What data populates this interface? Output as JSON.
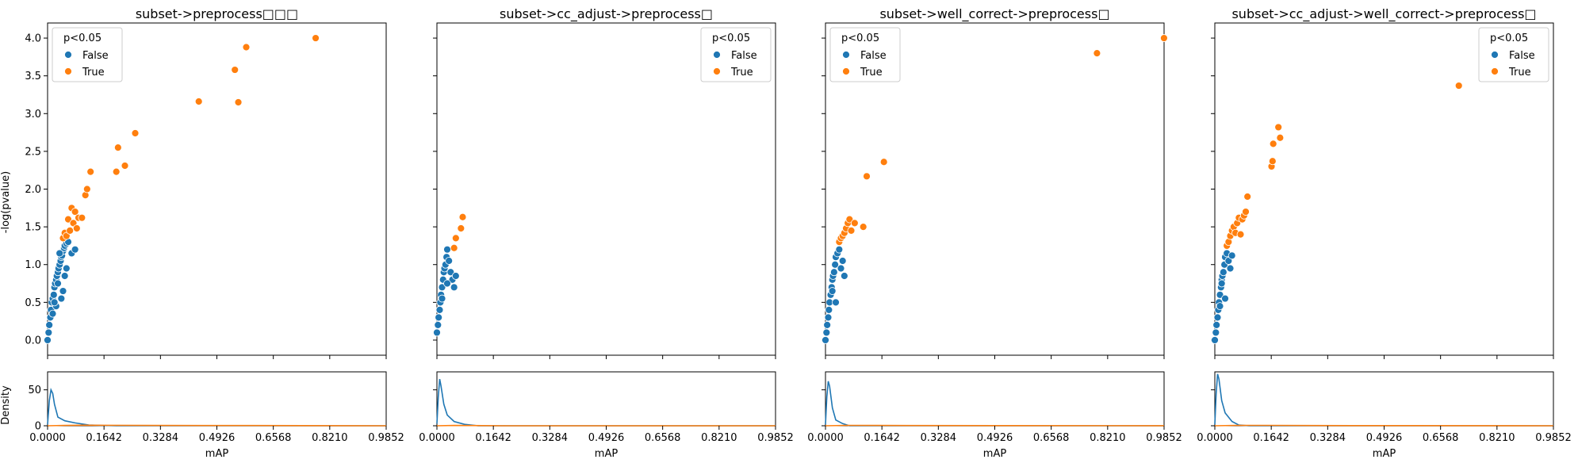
{
  "colors": {
    "false": "#1f77b4",
    "true": "#ff7f0e"
  },
  "chart_data": [
    {
      "type": "scatter",
      "title": "subset->preprocess□□□",
      "ylabel": "-log(pvalue)",
      "xlabel": "mAP",
      "xlim": [
        0,
        0.9852
      ],
      "ylim": [
        -0.2,
        4.2
      ],
      "xticks": [
        "0.0000",
        "0.1642",
        "0.3284",
        "0.4926",
        "0.6568",
        "0.8210",
        "0.9852"
      ],
      "yticks": [
        "0.0",
        "0.5",
        "1.0",
        "1.5",
        "2.0",
        "2.5",
        "3.0",
        "3.5",
        "4.0"
      ],
      "legend": {
        "title": "p<0.05",
        "entries": [
          "False",
          "True"
        ],
        "position": "top-left"
      },
      "series": [
        {
          "name": "False",
          "points": [
            [
              0.0,
              0.0
            ],
            [
              0.003,
              0.1
            ],
            [
              0.005,
              0.2
            ],
            [
              0.008,
              0.3
            ],
            [
              0.01,
              0.4
            ],
            [
              0.012,
              0.5
            ],
            [
              0.015,
              0.55
            ],
            [
              0.018,
              0.6
            ],
            [
              0.02,
              0.7
            ],
            [
              0.022,
              0.75
            ],
            [
              0.025,
              0.8
            ],
            [
              0.027,
              0.85
            ],
            [
              0.03,
              0.9
            ],
            [
              0.032,
              0.95
            ],
            [
              0.035,
              1.0
            ],
            [
              0.038,
              1.05
            ],
            [
              0.04,
              1.1
            ],
            [
              0.042,
              1.12
            ],
            [
              0.045,
              1.18
            ],
            [
              0.048,
              1.22
            ],
            [
              0.05,
              1.25
            ],
            [
              0.055,
              1.28
            ],
            [
              0.06,
              1.3
            ],
            [
              0.035,
              1.15
            ],
            [
              0.03,
              0.75
            ],
            [
              0.04,
              0.55
            ],
            [
              0.055,
              0.95
            ],
            [
              0.07,
              1.15
            ],
            [
              0.08,
              1.2
            ],
            [
              0.05,
              0.85
            ],
            [
              0.045,
              0.65
            ],
            [
              0.025,
              0.45
            ],
            [
              0.02,
              0.5
            ],
            [
              0.015,
              0.35
            ]
          ]
        },
        {
          "name": "True",
          "points": [
            [
              0.045,
              1.35
            ],
            [
              0.05,
              1.42
            ],
            [
              0.055,
              1.38
            ],
            [
              0.06,
              1.6
            ],
            [
              0.065,
              1.45
            ],
            [
              0.07,
              1.75
            ],
            [
              0.075,
              1.55
            ],
            [
              0.08,
              1.7
            ],
            [
              0.085,
              1.48
            ],
            [
              0.09,
              1.62
            ],
            [
              0.1,
              1.62
            ],
            [
              0.11,
              1.92
            ],
            [
              0.115,
              2.0
            ],
            [
              0.125,
              2.23
            ],
            [
              0.2,
              2.23
            ],
            [
              0.205,
              2.55
            ],
            [
              0.225,
              2.31
            ],
            [
              0.255,
              2.74
            ],
            [
              0.44,
              3.16
            ],
            [
              0.545,
              3.58
            ],
            [
              0.555,
              3.15
            ],
            [
              0.578,
              3.88
            ],
            [
              0.78,
              4.0
            ]
          ]
        }
      ]
    },
    {
      "type": "scatter",
      "title": "subset->cc_adjust->preprocess□",
      "xlabel": "mAP",
      "xlim": [
        0,
        0.9852
      ],
      "ylim": [
        -0.2,
        4.2
      ],
      "xticks": [
        "0.0000",
        "0.1642",
        "0.3284",
        "0.4926",
        "0.6568",
        "0.8210",
        "0.9852"
      ],
      "legend": {
        "title": "p<0.05",
        "entries": [
          "False",
          "True"
        ],
        "position": "top-right"
      },
      "series": [
        {
          "name": "False",
          "points": [
            [
              0.0,
              0.1
            ],
            [
              0.003,
              0.2
            ],
            [
              0.005,
              0.3
            ],
            [
              0.008,
              0.4
            ],
            [
              0.01,
              0.5
            ],
            [
              0.012,
              0.6
            ],
            [
              0.015,
              0.7
            ],
            [
              0.018,
              0.8
            ],
            [
              0.02,
              0.9
            ],
            [
              0.022,
              0.95
            ],
            [
              0.025,
              1.0
            ],
            [
              0.028,
              1.1
            ],
            [
              0.03,
              1.2
            ],
            [
              0.035,
              1.05
            ],
            [
              0.04,
              0.9
            ],
            [
              0.045,
              0.8
            ],
            [
              0.05,
              0.7
            ],
            [
              0.055,
              0.85
            ],
            [
              0.03,
              0.75
            ],
            [
              0.015,
              0.55
            ]
          ]
        },
        {
          "name": "True",
          "points": [
            [
              0.05,
              1.22
            ],
            [
              0.055,
              1.35
            ],
            [
              0.07,
              1.48
            ],
            [
              0.075,
              1.63
            ]
          ]
        }
      ]
    },
    {
      "type": "scatter",
      "title": "subset->well_correct->preprocess□",
      "xlabel": "mAP",
      "xlim": [
        0,
        0.9852
      ],
      "ylim": [
        -0.2,
        4.2
      ],
      "xticks": [
        "0.0000",
        "0.1642",
        "0.3284",
        "0.4926",
        "0.6568",
        "0.8210",
        "0.9852"
      ],
      "legend": {
        "title": "p<0.05",
        "entries": [
          "False",
          "True"
        ],
        "position": "top-left"
      },
      "series": [
        {
          "name": "False",
          "points": [
            [
              0.0,
              0.0
            ],
            [
              0.003,
              0.1
            ],
            [
              0.005,
              0.2
            ],
            [
              0.008,
              0.3
            ],
            [
              0.01,
              0.4
            ],
            [
              0.012,
              0.5
            ],
            [
              0.015,
              0.6
            ],
            [
              0.018,
              0.7
            ],
            [
              0.02,
              0.8
            ],
            [
              0.022,
              0.85
            ],
            [
              0.025,
              0.9
            ],
            [
              0.028,
              1.0
            ],
            [
              0.03,
              1.1
            ],
            [
              0.035,
              1.15
            ],
            [
              0.04,
              1.2
            ],
            [
              0.045,
              0.95
            ],
            [
              0.05,
              1.05
            ],
            [
              0.055,
              0.85
            ],
            [
              0.03,
              0.5
            ],
            [
              0.02,
              0.65
            ]
          ]
        },
        {
          "name": "True",
          "points": [
            [
              0.04,
              1.3
            ],
            [
              0.045,
              1.35
            ],
            [
              0.05,
              1.38
            ],
            [
              0.055,
              1.42
            ],
            [
              0.06,
              1.48
            ],
            [
              0.065,
              1.55
            ],
            [
              0.07,
              1.6
            ],
            [
              0.075,
              1.45
            ],
            [
              0.085,
              1.55
            ],
            [
              0.11,
              1.5
            ],
            [
              0.12,
              2.17
            ],
            [
              0.17,
              2.36
            ],
            [
              0.79,
              3.8
            ],
            [
              0.985,
              4.0
            ]
          ]
        }
      ]
    },
    {
      "type": "scatter",
      "title": "subset->cc_adjust->well_correct->preprocess□",
      "xlabel": "mAP",
      "xlim": [
        0,
        0.9852
      ],
      "ylim": [
        -0.2,
        4.2
      ],
      "xticks": [
        "0.0000",
        "0.1642",
        "0.3284",
        "0.4926",
        "0.6568",
        "0.8210",
        "0.9852"
      ],
      "legend": {
        "title": "p<0.05",
        "entries": [
          "False",
          "True"
        ],
        "position": "top-right"
      },
      "series": [
        {
          "name": "False",
          "points": [
            [
              0.0,
              0.0
            ],
            [
              0.003,
              0.1
            ],
            [
              0.005,
              0.2
            ],
            [
              0.008,
              0.3
            ],
            [
              0.01,
              0.4
            ],
            [
              0.012,
              0.5
            ],
            [
              0.015,
              0.6
            ],
            [
              0.018,
              0.7
            ],
            [
              0.02,
              0.8
            ],
            [
              0.022,
              0.85
            ],
            [
              0.025,
              0.9
            ],
            [
              0.028,
              1.0
            ],
            [
              0.03,
              1.1
            ],
            [
              0.035,
              1.15
            ],
            [
              0.04,
              1.05
            ],
            [
              0.045,
              0.95
            ],
            [
              0.05,
              1.12
            ],
            [
              0.03,
              0.55
            ],
            [
              0.02,
              0.75
            ],
            [
              0.015,
              0.45
            ]
          ]
        },
        {
          "name": "True",
          "points": [
            [
              0.035,
              1.25
            ],
            [
              0.04,
              1.3
            ],
            [
              0.045,
              1.38
            ],
            [
              0.05,
              1.45
            ],
            [
              0.055,
              1.5
            ],
            [
              0.06,
              1.42
            ],
            [
              0.065,
              1.55
            ],
            [
              0.07,
              1.62
            ],
            [
              0.075,
              1.4
            ],
            [
              0.08,
              1.6
            ],
            [
              0.085,
              1.65
            ],
            [
              0.09,
              1.7
            ],
            [
              0.095,
              1.9
            ],
            [
              0.165,
              2.3
            ],
            [
              0.168,
              2.37
            ],
            [
              0.17,
              2.6
            ],
            [
              0.185,
              2.82
            ],
            [
              0.19,
              2.68
            ],
            [
              0.71,
              3.37
            ]
          ]
        }
      ]
    }
  ],
  "density": {
    "ylabel": "Density",
    "yticks": [
      "0",
      "50"
    ],
    "xlabel": "mAP",
    "ylim": [
      0,
      75
    ],
    "series": [
      {
        "name": "False",
        "curves": [
          [
            [
              0,
              2
            ],
            [
              0.005,
              35
            ],
            [
              0.01,
              50
            ],
            [
              0.015,
              45
            ],
            [
              0.02,
              30
            ],
            [
              0.03,
              12
            ],
            [
              0.05,
              7
            ],
            [
              0.08,
              4
            ],
            [
              0.12,
              1
            ],
            [
              0.2,
              0
            ],
            [
              0.9852,
              0
            ]
          ],
          [
            [
              0,
              3
            ],
            [
              0.004,
              40
            ],
            [
              0.008,
              65
            ],
            [
              0.012,
              55
            ],
            [
              0.02,
              30
            ],
            [
              0.03,
              15
            ],
            [
              0.05,
              6
            ],
            [
              0.08,
              2
            ],
            [
              0.12,
              0
            ],
            [
              0.9852,
              0
            ]
          ],
          [
            [
              0,
              2
            ],
            [
              0.004,
              40
            ],
            [
              0.008,
              62
            ],
            [
              0.012,
              55
            ],
            [
              0.02,
              25
            ],
            [
              0.03,
              8
            ],
            [
              0.05,
              3
            ],
            [
              0.07,
              0
            ],
            [
              0.9852,
              0
            ]
          ],
          [
            [
              0,
              2
            ],
            [
              0.004,
              45
            ],
            [
              0.008,
              72
            ],
            [
              0.012,
              65
            ],
            [
              0.02,
              35
            ],
            [
              0.03,
              18
            ],
            [
              0.05,
              6
            ],
            [
              0.07,
              1
            ],
            [
              0.1,
              0
            ],
            [
              0.9852,
              0
            ]
          ]
        ]
      },
      {
        "name": "True",
        "curves": [
          [
            [
              0,
              0
            ],
            [
              0.05,
              0.5
            ],
            [
              0.1,
              0.8
            ],
            [
              0.3,
              0.4
            ],
            [
              0.6,
              0.3
            ],
            [
              0.9852,
              0
            ]
          ],
          [
            [
              0,
              0
            ],
            [
              0.05,
              0.4
            ],
            [
              0.1,
              0.3
            ],
            [
              0.2,
              0
            ],
            [
              0.9852,
              0
            ]
          ],
          [
            [
              0,
              0
            ],
            [
              0.06,
              0.6
            ],
            [
              0.15,
              0.4
            ],
            [
              0.5,
              0.2
            ],
            [
              0.9852,
              0.1
            ]
          ],
          [
            [
              0,
              0
            ],
            [
              0.06,
              0.6
            ],
            [
              0.15,
              0.5
            ],
            [
              0.4,
              0.2
            ],
            [
              0.9852,
              0
            ]
          ]
        ]
      }
    ]
  }
}
